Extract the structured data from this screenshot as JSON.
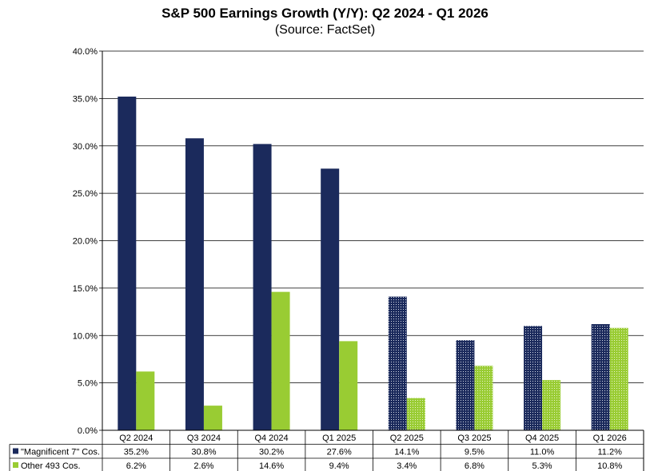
{
  "chart_data": {
    "type": "bar",
    "title": "S&P 500 Earnings Growth (Y/Y): Q2 2024 - Q1 2026",
    "subtitle": "(Source: FactSet)",
    "categories": [
      "Q2 2024",
      "Q3 2024",
      "Q4 2024",
      "Q1 2025",
      "Q2 2025",
      "Q3 2025",
      "Q4 2025",
      "Q1 2026"
    ],
    "estimate_start_index": 4,
    "series": [
      {
        "name": "\"Magnificent 7\" Cos.",
        "values": [
          35.2,
          30.8,
          30.2,
          27.6,
          14.1,
          9.5,
          11.0,
          11.2
        ],
        "labels": [
          "35.2%",
          "30.8%",
          "30.2%",
          "27.6%",
          "14.1%",
          "9.5%",
          "11.0%",
          "11.2%"
        ],
        "color": "#1b2a5c"
      },
      {
        "name": "Other 493 Cos.",
        "values": [
          6.2,
          2.6,
          14.6,
          9.4,
          3.4,
          6.8,
          5.3,
          10.8
        ],
        "labels": [
          "6.2%",
          "2.6%",
          "14.6%",
          "9.4%",
          "3.4%",
          "6.8%",
          "5.3%",
          "10.8%"
        ],
        "color": "#99cc33"
      }
    ],
    "ylim": [
      0,
      40
    ],
    "yticks": [
      "0.0%",
      "5.0%",
      "10.0%",
      "15.0%",
      "20.0%",
      "25.0%",
      "30.0%",
      "35.0%",
      "40.0%"
    ],
    "grid": true,
    "legend": "data-table-below"
  }
}
